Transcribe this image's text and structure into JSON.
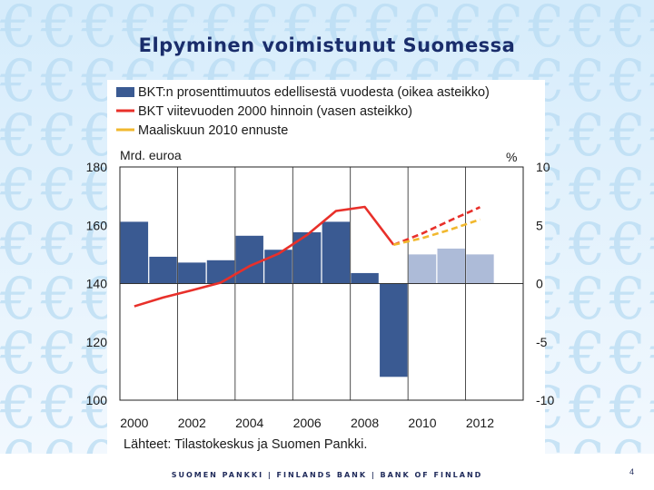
{
  "title": "Elpyminen voimistunut Suomessa",
  "footer": "SUOMEN PANKKI | FINLANDS BANK | BANK OF FINLAND",
  "page_number": "4",
  "colors": {
    "bar_actual": "#3a5a92",
    "bar_forecast": "#adbbd8",
    "line_actual": "#e8302a",
    "forecast_gdp": "#e8302a",
    "forecast_march": "#f1b82e",
    "title": "#1a2d6b"
  },
  "chart_data": {
    "type": "bar+line",
    "title": "Elpyminen voimistunut Suomessa",
    "legend": [
      {
        "label": "BKT:n prosenttimuutos edellisestä vuodesta (oikea asteikko)",
        "style": "bar"
      },
      {
        "label": "BKT viitevuoden 2000 hinnoin (vasen asteikko)",
        "style": "line"
      },
      {
        "label": "Maaliskuun 2010 ennuste",
        "style": "dashed"
      }
    ],
    "left_axis": {
      "label": "Mrd. euroa",
      "ylim": [
        100,
        180
      ],
      "ticks": [
        "100",
        "120",
        "140",
        "160",
        "180"
      ]
    },
    "right_axis": {
      "label": "%",
      "ylim": [
        -10,
        10
      ],
      "ticks": [
        "-10",
        "-5",
        "0",
        "5",
        "10"
      ]
    },
    "x_axis": {
      "ticks": [
        "2000",
        "2002",
        "2004",
        "2006",
        "2008",
        "2010",
        "2012"
      ],
      "xlim": [
        1999.5,
        2013.5
      ]
    },
    "bars": {
      "name": "BKT:n prosenttimuutos edellisestä vuodesta",
      "years": [
        2000,
        2001,
        2002,
        2003,
        2004,
        2005,
        2006,
        2007,
        2008,
        2009,
        2010,
        2011,
        2012
      ],
      "values": [
        5.3,
        2.3,
        1.8,
        2.0,
        4.1,
        2.9,
        4.4,
        5.3,
        0.9,
        -8.0,
        2.5,
        3.0,
        2.5
      ],
      "forecast_from": 2010
    },
    "gdp_line": {
      "name": "BKT viitevuoden 2000 hinnoin",
      "x": [
        2000,
        2001,
        2002,
        2003,
        2004,
        2005,
        2006,
        2007,
        2008,
        2009
      ],
      "y": [
        132.2,
        135.2,
        137.7,
        140.3,
        146.0,
        150.2,
        156.7,
        164.9,
        166.3,
        153.3
      ]
    },
    "forecast_lines": [
      {
        "name": "BKT ennuste",
        "x": [
          2009,
          2010,
          2011,
          2012
        ],
        "y": [
          153.3,
          157.2,
          161.8,
          166.2
        ]
      },
      {
        "name": "Maaliskuun 2010 ennuste",
        "x": [
          2009,
          2010,
          2011,
          2012
        ],
        "y": [
          153.3,
          155.6,
          158.6,
          162.0
        ]
      }
    ],
    "source": "Lähteet: Tilastokeskus ja Suomen Pankki."
  }
}
